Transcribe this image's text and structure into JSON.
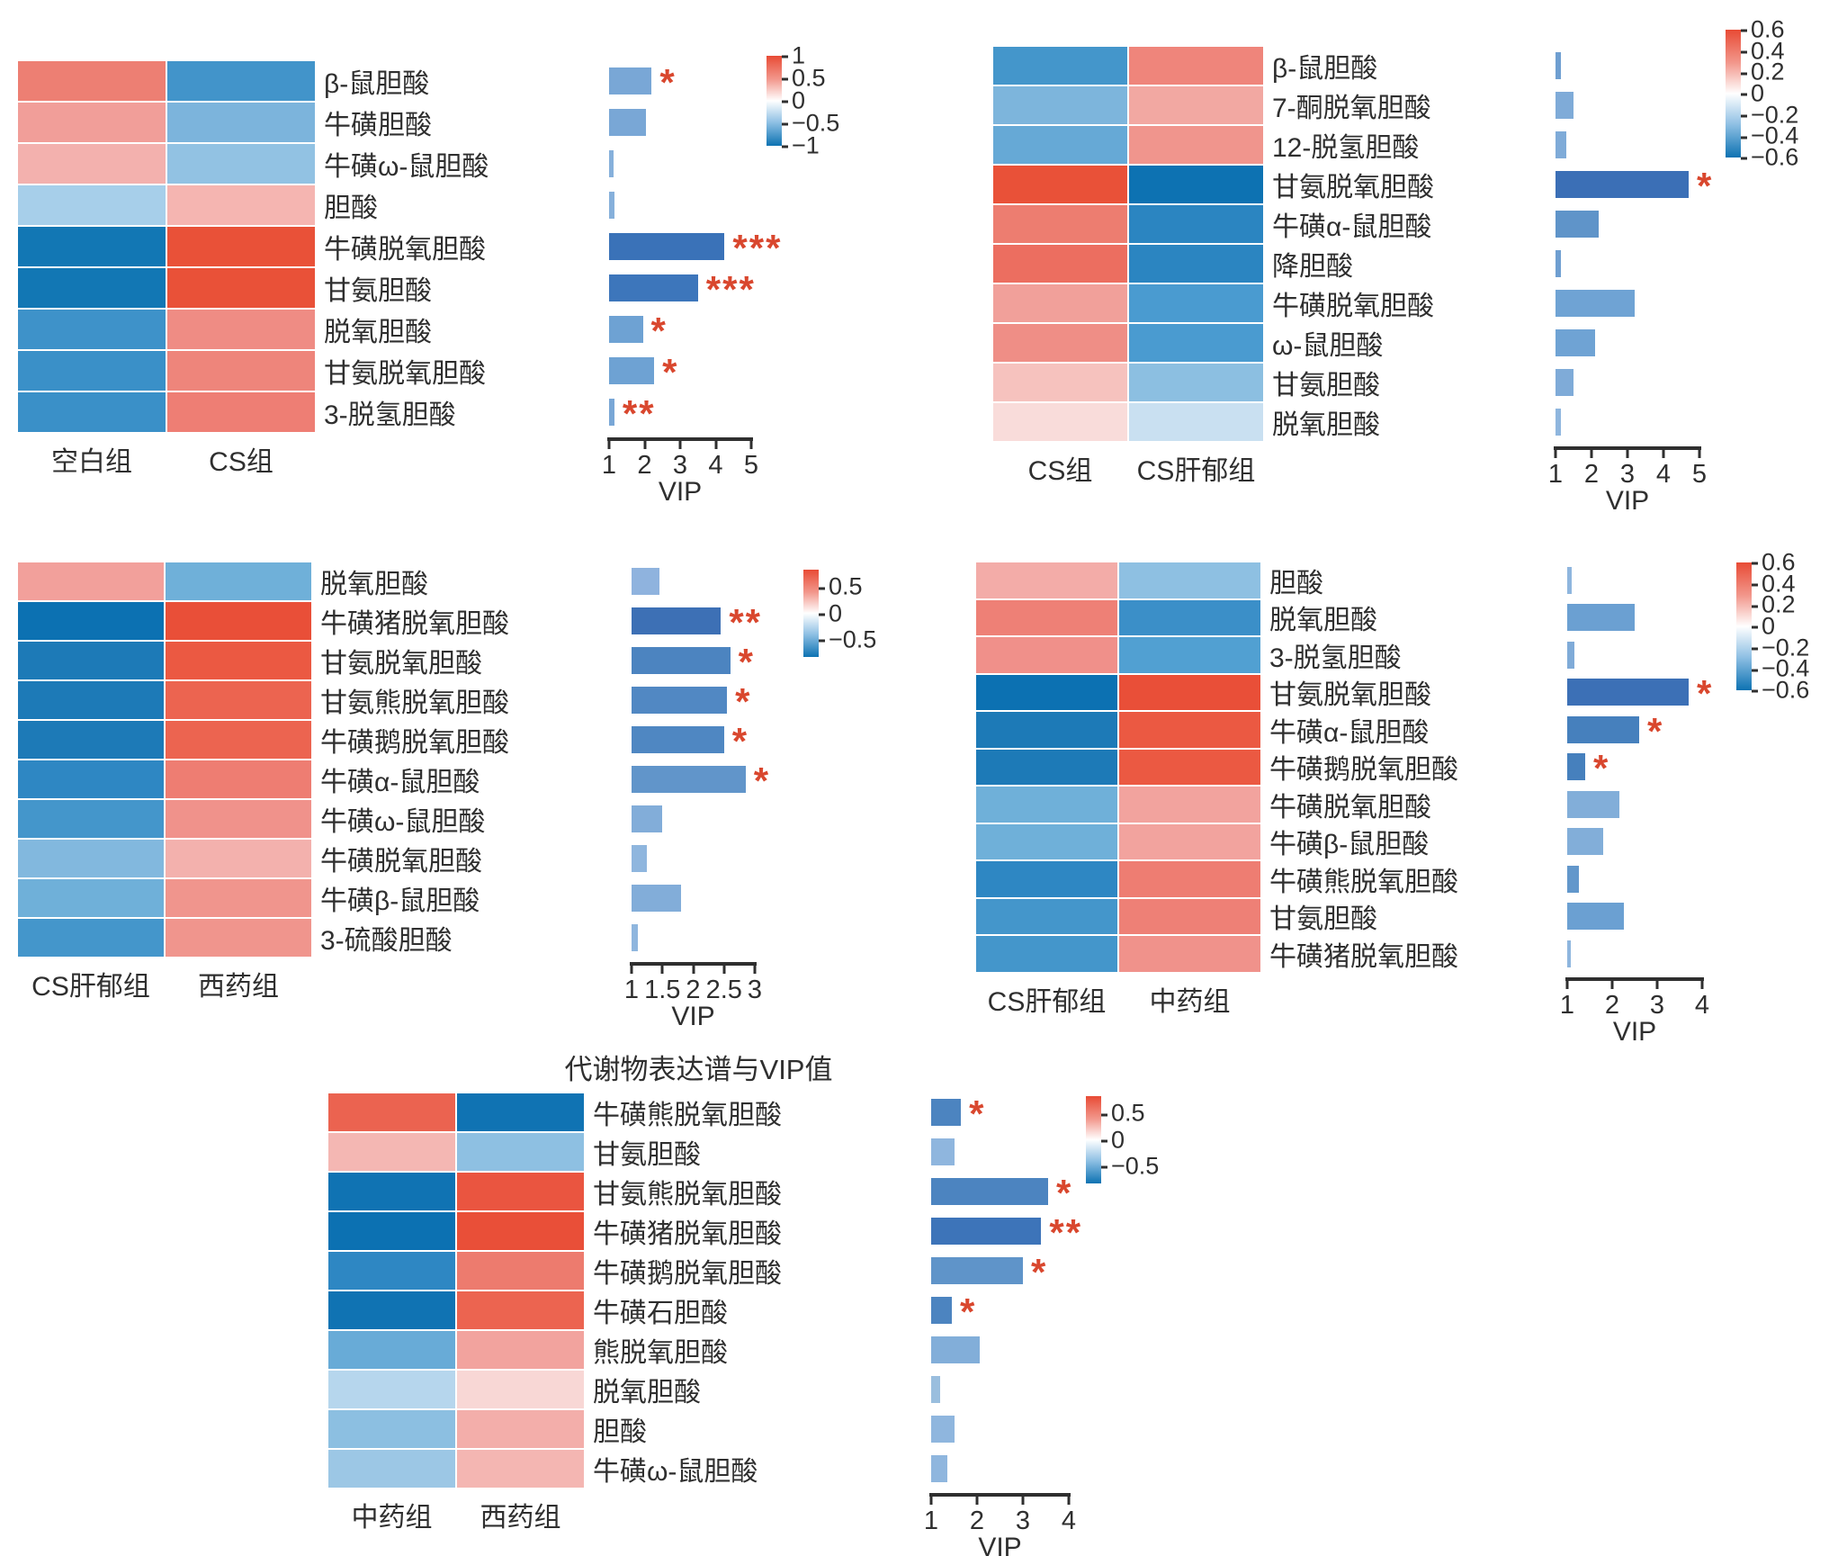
{
  "colors": {
    "star": "#d9472e",
    "axis": "#2f2f2f",
    "colormap_positive": "#e84b35",
    "colormap_negative": "#0d72b2"
  },
  "chart_data": [
    {
      "type": "heatmap_vip_bar",
      "columns": [
        "空白组",
        "CS组"
      ],
      "vip_axis": {
        "label": "VIP",
        "min": 1,
        "max": 5,
        "ticks": [
          "1",
          "2",
          "3",
          "4",
          "5"
        ]
      },
      "colorbar": {
        "ticks": [
          "1",
          "0.5",
          "0",
          "−0.5",
          "−1"
        ],
        "min": -1,
        "max": 1
      },
      "rows": [
        {
          "label": "β-鼠胆酸",
          "cells": [
            {
              "color": "#ed7f73",
              "value": 0.55
            },
            {
              "color": "#4294ca",
              "value": -0.45
            }
          ],
          "vip": 2.2,
          "sig": "*",
          "bar_color": "#79a7d6"
        },
        {
          "label": "牛磺胆酸",
          "cells": [
            {
              "color": "#f19e99",
              "value": 0.4
            },
            {
              "color": "#7cb4dc",
              "value": -0.35
            }
          ],
          "vip": 2.05,
          "sig": "",
          "bar_color": "#79a7d6"
        },
        {
          "label": "牛磺ω-鼠胆酸",
          "cells": [
            {
              "color": "#f3b1ae",
              "value": 0.3
            },
            {
              "color": "#92c2e3",
              "value": -0.28
            }
          ],
          "vip": 1.13,
          "sig": "",
          "bar_color": "#86b0db"
        },
        {
          "label": "胆酸",
          "cells": [
            {
              "color": "#a7cfea",
              "value": -0.25
            },
            {
              "color": "#f5b5b1",
              "value": 0.28
            }
          ],
          "vip": 1.15,
          "sig": "",
          "bar_color": "#86b0db"
        },
        {
          "label": "牛磺脱氧胆酸",
          "cells": [
            {
              "color": "#1277b4",
              "value": -0.95
            },
            {
              "color": "#e95138",
              "value": 0.85
            }
          ],
          "vip": 4.25,
          "sig": "***",
          "bar_color": "#3a72b8"
        },
        {
          "label": "甘氨胆酸",
          "cells": [
            {
              "color": "#1277b4",
              "value": -0.95
            },
            {
              "color": "#e95138",
              "value": 0.85
            }
          ],
          "vip": 3.5,
          "sig": "***",
          "bar_color": "#3d76bb"
        },
        {
          "label": "脱氧胆酸",
          "cells": [
            {
              "color": "#3e92c9",
              "value": -0.55
            },
            {
              "color": "#ef8c84",
              "value": 0.5
            }
          ],
          "vip": 1.95,
          "sig": "*",
          "bar_color": "#6ea2d3"
        },
        {
          "label": "甘氨脱氧胆酸",
          "cells": [
            {
              "color": "#3a90c8",
              "value": -0.55
            },
            {
              "color": "#ee857b",
              "value": 0.52
            }
          ],
          "vip": 2.27,
          "sig": "*",
          "bar_color": "#6ea2d3"
        },
        {
          "label": "3-脱氢胆酸",
          "cells": [
            {
              "color": "#3a90c8",
              "value": -0.55
            },
            {
              "color": "#ee7e74",
              "value": 0.55
            }
          ],
          "vip": 1.15,
          "sig": "**",
          "bar_color": "#79a7d6"
        }
      ]
    },
    {
      "type": "heatmap_vip_bar",
      "columns": [
        "CS组",
        "CS肝郁组"
      ],
      "vip_axis": {
        "label": "VIP",
        "min": 1,
        "max": 5,
        "ticks": [
          "1",
          "2",
          "3",
          "4",
          "5"
        ]
      },
      "colorbar": {
        "ticks": [
          "0.6",
          "0.4",
          "0.2",
          "0",
          "−0.2",
          "−0.4",
          "−0.6"
        ],
        "min": -0.6,
        "max": 0.6
      },
      "rows": [
        {
          "label": "β-鼠胆酸",
          "cells": [
            {
              "color": "#4496cb",
              "value": -0.33
            },
            {
              "color": "#ef857b",
              "value": 0.33
            }
          ],
          "vip": 1.15,
          "sig": "",
          "bar_color": "#6f9fd1"
        },
        {
          "label": "7-酮脱氧胆酸",
          "cells": [
            {
              "color": "#7db5dc",
              "value": -0.2
            },
            {
              "color": "#f2a8a2",
              "value": 0.2
            }
          ],
          "vip": 1.5,
          "sig": "",
          "bar_color": "#7fabd8"
        },
        {
          "label": "12-脱氢胆酸",
          "cells": [
            {
              "color": "#66a9d6",
              "value": -0.27
            },
            {
              "color": "#f0958d",
              "value": 0.28
            }
          ],
          "vip": 1.3,
          "sig": "",
          "bar_color": "#7fabd8"
        },
        {
          "label": "甘氨脱氧胆酸",
          "cells": [
            {
              "color": "#e95138",
              "value": 0.55
            },
            {
              "color": "#0d72b2",
              "value": -0.55
            }
          ],
          "vip": 4.7,
          "sig": "*",
          "bar_color": "#3b6fb6"
        },
        {
          "label": "牛磺α-鼠胆酸",
          "cells": [
            {
              "color": "#ed7d70",
              "value": 0.37
            },
            {
              "color": "#2b85c1",
              "value": -0.42
            }
          ],
          "vip": 2.2,
          "sig": "",
          "bar_color": "#5f94c9"
        },
        {
          "label": "降胆酸",
          "cells": [
            {
              "color": "#ec6e60",
              "value": 0.42
            },
            {
              "color": "#2b85c1",
              "value": -0.42
            }
          ],
          "vip": 1.15,
          "sig": "",
          "bar_color": "#6f9fd1"
        },
        {
          "label": "牛磺脱氧胆酸",
          "cells": [
            {
              "color": "#f1a09a",
              "value": 0.2
            },
            {
              "color": "#4a9bd0",
              "value": -0.32
            }
          ],
          "vip": 3.2,
          "sig": "",
          "bar_color": "#6fa3d4"
        },
        {
          "label": "ω-鼠胆酸",
          "cells": [
            {
              "color": "#ef8e86",
              "value": 0.3
            },
            {
              "color": "#4a9bd0",
              "value": -0.32
            }
          ],
          "vip": 2.1,
          "sig": "",
          "bar_color": "#6fa3d4"
        },
        {
          "label": "甘氨胆酸",
          "cells": [
            {
              "color": "#f6c2be",
              "value": 0.12
            },
            {
              "color": "#8cbfe1",
              "value": -0.18
            }
          ],
          "vip": 1.5,
          "sig": "",
          "bar_color": "#7fabd8"
        },
        {
          "label": "脱氧胆酸",
          "cells": [
            {
              "color": "#f9dcda",
              "value": 0.05
            },
            {
              "color": "#c9e0f1",
              "value": -0.08
            }
          ],
          "vip": 1.15,
          "sig": "",
          "bar_color": "#8fb6de"
        }
      ]
    },
    {
      "type": "heatmap_vip_bar",
      "columns": [
        "CS肝郁组",
        "西药组"
      ],
      "vip_axis": {
        "label": "VIP",
        "min": 1,
        "max": 3,
        "ticks": [
          "1",
          "1.5",
          "2",
          "2.5",
          "3"
        ]
      },
      "colorbar": {
        "ticks": [
          "0.5",
          "0",
          "−0.5"
        ],
        "min": -0.5,
        "max": 0.5
      },
      "rows": [
        {
          "label": "脱氧胆酸",
          "cells": [
            {
              "color": "#f2a09b",
              "value": 0.25
            },
            {
              "color": "#6fb0d9",
              "value": -0.3
            }
          ],
          "vip": 1.45,
          "sig": "",
          "bar_color": "#8fb3de"
        },
        {
          "label": "牛磺猪脱氧胆酸",
          "cells": [
            {
              "color": "#0c71b2",
              "value": -0.55
            },
            {
              "color": "#e94f38",
              "value": 0.55
            }
          ],
          "vip": 2.45,
          "sig": "**",
          "bar_color": "#3d70b5"
        },
        {
          "label": "甘氨脱氧胆酸",
          "cells": [
            {
              "color": "#1d7ab7",
              "value": -0.5
            },
            {
              "color": "#eb5942",
              "value": 0.5
            }
          ],
          "vip": 2.6,
          "sig": "*",
          "bar_color": "#4c84c0"
        },
        {
          "label": "甘氨熊脱氧胆酸",
          "cells": [
            {
              "color": "#1d7ab7",
              "value": -0.5
            },
            {
              "color": "#ec6450",
              "value": 0.45
            }
          ],
          "vip": 2.55,
          "sig": "*",
          "bar_color": "#5188c3"
        },
        {
          "label": "牛磺鹅脱氧胆酸",
          "cells": [
            {
              "color": "#1d7ab7",
              "value": -0.5
            },
            {
              "color": "#ec6450",
              "value": 0.45
            }
          ],
          "vip": 2.5,
          "sig": "*",
          "bar_color": "#4f87c2"
        },
        {
          "label": "牛磺α-鼠胆酸",
          "cells": [
            {
              "color": "#2e87c3",
              "value": -0.45
            },
            {
              "color": "#ee7d72",
              "value": 0.35
            }
          ],
          "vip": 2.85,
          "sig": "*",
          "bar_color": "#6195ca"
        },
        {
          "label": "牛磺ω-鼠胆酸",
          "cells": [
            {
              "color": "#4496cb",
              "value": -0.33
            },
            {
              "color": "#f0928b",
              "value": 0.3
            }
          ],
          "vip": 1.5,
          "sig": "",
          "bar_color": "#82add9"
        },
        {
          "label": "牛磺脱氧胆酸",
          "cells": [
            {
              "color": "#82b8de",
              "value": -0.2
            },
            {
              "color": "#f3b1ad",
              "value": 0.18
            }
          ],
          "vip": 1.25,
          "sig": "",
          "bar_color": "#8fb6de"
        },
        {
          "label": "牛磺β-鼠胆酸",
          "cells": [
            {
              "color": "#6fb0d9",
              "value": -0.3
            },
            {
              "color": "#f0958d",
              "value": 0.28
            }
          ],
          "vip": 1.8,
          "sig": "",
          "bar_color": "#82add9"
        },
        {
          "label": "3-硫酸胆酸",
          "cells": [
            {
              "color": "#4496cb",
              "value": -0.33
            },
            {
              "color": "#f0958d",
              "value": 0.28
            }
          ],
          "vip": 1.1,
          "sig": "",
          "bar_color": "#8fb6de"
        }
      ]
    },
    {
      "type": "heatmap_vip_bar",
      "columns": [
        "CS肝郁组",
        "中药组"
      ],
      "vip_axis": {
        "label": "VIP",
        "min": 1,
        "max": 4,
        "ticks": [
          "1",
          "2",
          "3",
          "4"
        ]
      },
      "colorbar": {
        "ticks": [
          "0.6",
          "0.4",
          "0.2",
          "0",
          "−0.2",
          "−0.4",
          "−0.6"
        ],
        "min": -0.6,
        "max": 0.6
      },
      "rows": [
        {
          "label": "胆酸",
          "cells": [
            {
              "color": "#f3aca8",
              "value": 0.22
            },
            {
              "color": "#8ec0e2",
              "value": -0.18
            }
          ],
          "vip": 1.1,
          "sig": "",
          "bar_color": "#8fb6de"
        },
        {
          "label": "脱氧胆酸",
          "cells": [
            {
              "color": "#ee8076",
              "value": 0.38
            },
            {
              "color": "#3b8fc8",
              "value": -0.35
            }
          ],
          "vip": 2.5,
          "sig": "",
          "bar_color": "#6ba0d2"
        },
        {
          "label": "3-脱氢胆酸",
          "cells": [
            {
              "color": "#f0908a",
              "value": 0.32
            },
            {
              "color": "#51a0d2",
              "value": -0.28
            }
          ],
          "vip": 1.15,
          "sig": "",
          "bar_color": "#7fabd8"
        },
        {
          "label": "甘氨脱氧胆酸",
          "cells": [
            {
              "color": "#0c71b2",
              "value": -0.6
            },
            {
              "color": "#e94f38",
              "value": 0.58
            }
          ],
          "vip": 3.7,
          "sig": "*",
          "bar_color": "#3c70b6"
        },
        {
          "label": "牛磺α-鼠胆酸",
          "cells": [
            {
              "color": "#1d7ab7",
              "value": -0.55
            },
            {
              "color": "#eb5942",
              "value": 0.52
            }
          ],
          "vip": 2.6,
          "sig": "*",
          "bar_color": "#4680bd"
        },
        {
          "label": "牛磺鹅脱氧胆酸",
          "cells": [
            {
              "color": "#1d7ab7",
              "value": -0.55
            },
            {
              "color": "#eb5942",
              "value": 0.52
            }
          ],
          "vip": 1.4,
          "sig": "*",
          "bar_color": "#4680bd"
        },
        {
          "label": "牛磺脱氧胆酸",
          "cells": [
            {
              "color": "#6fb0d9",
              "value": -0.25
            },
            {
              "color": "#f2a39e",
              "value": 0.22
            }
          ],
          "vip": 2.15,
          "sig": "",
          "bar_color": "#82aed9"
        },
        {
          "label": "牛磺β-鼠胆酸",
          "cells": [
            {
              "color": "#6fb0d9",
              "value": -0.25
            },
            {
              "color": "#f2a39e",
              "value": 0.22
            }
          ],
          "vip": 1.8,
          "sig": "",
          "bar_color": "#82aed9"
        },
        {
          "label": "牛磺熊脱氧胆酸",
          "cells": [
            {
              "color": "#2e87c3",
              "value": -0.42
            },
            {
              "color": "#ee7d72",
              "value": 0.38
            }
          ],
          "vip": 1.25,
          "sig": "",
          "bar_color": "#6297cb"
        },
        {
          "label": "甘氨胆酸",
          "cells": [
            {
              "color": "#4496cb",
              "value": -0.33
            },
            {
              "color": "#ee8076",
              "value": 0.38
            }
          ],
          "vip": 2.25,
          "sig": "",
          "bar_color": "#6ba0d2"
        },
        {
          "label": "牛磺猪脱氧胆酸",
          "cells": [
            {
              "color": "#4496cb",
              "value": -0.33
            },
            {
              "color": "#f0928b",
              "value": 0.3
            }
          ],
          "vip": 1.05,
          "sig": "",
          "bar_color": "#8fb6de"
        }
      ]
    },
    {
      "type": "heatmap_vip_bar",
      "title": "代谢物表达谱与VIP值",
      "columns": [
        "中药组",
        "西药组"
      ],
      "vip_axis": {
        "label": "VIP",
        "min": 1,
        "max": 4,
        "ticks": [
          "1",
          "2",
          "3",
          "4"
        ]
      },
      "colorbar": {
        "ticks": [
          "0.5",
          "0",
          "−0.5"
        ],
        "min": -0.5,
        "max": 0.5
      },
      "rows": [
        {
          "label": "牛磺熊脱氧胆酸",
          "cells": [
            {
              "color": "#eb6350",
              "value": 0.48
            },
            {
              "color": "#1073b3",
              "value": -0.55
            }
          ],
          "vip": 1.65,
          "sig": "*",
          "bar_color": "#4c84c0"
        },
        {
          "label": "甘氨胆酸",
          "cells": [
            {
              "color": "#f4b7b3",
              "value": 0.18
            },
            {
              "color": "#8ec0e2",
              "value": -0.2
            }
          ],
          "vip": 1.5,
          "sig": "",
          "bar_color": "#8fb6de"
        },
        {
          "label": "甘氨熊脱氧胆酸",
          "cells": [
            {
              "color": "#1073b3",
              "value": -0.55
            },
            {
              "color": "#ea5540",
              "value": 0.52
            }
          ],
          "vip": 3.55,
          "sig": "*",
          "bar_color": "#4c84c0"
        },
        {
          "label": "牛磺猪脱氧胆酸",
          "cells": [
            {
              "color": "#0c71b2",
              "value": -0.55
            },
            {
              "color": "#e94f38",
              "value": 0.55
            }
          ],
          "vip": 3.4,
          "sig": "**",
          "bar_color": "#3d74b9"
        },
        {
          "label": "牛磺鹅脱氧胆酸",
          "cells": [
            {
              "color": "#2e87c3",
              "value": -0.42
            },
            {
              "color": "#ed7b6e",
              "value": 0.4
            }
          ],
          "vip": 3.0,
          "sig": "*",
          "bar_color": "#5f94c9"
        },
        {
          "label": "牛磺石胆酸",
          "cells": [
            {
              "color": "#1073b3",
              "value": -0.55
            },
            {
              "color": "#ec6450",
              "value": 0.45
            }
          ],
          "vip": 1.45,
          "sig": "*",
          "bar_color": "#4c84c0"
        },
        {
          "label": "熊脱氧胆酸",
          "cells": [
            {
              "color": "#68abd7",
              "value": -0.28
            },
            {
              "color": "#f2a39e",
              "value": 0.22
            }
          ],
          "vip": 2.05,
          "sig": "",
          "bar_color": "#82aed9"
        },
        {
          "label": "脱氧胆酸",
          "cells": [
            {
              "color": "#b6d6ed",
              "value": -0.12
            },
            {
              "color": "#f8d7d5",
              "value": 0.1
            }
          ],
          "vip": 1.2,
          "sig": "",
          "bar_color": "#9abede"
        },
        {
          "label": "胆酸",
          "cells": [
            {
              "color": "#8cbfe1",
              "value": -0.2
            },
            {
              "color": "#f3aeaa",
              "value": 0.2
            }
          ],
          "vip": 1.5,
          "sig": "",
          "bar_color": "#8fb6de"
        },
        {
          "label": "牛磺ω-鼠胆酸",
          "cells": [
            {
              "color": "#9cc7e5",
              "value": -0.17
            },
            {
              "color": "#f4b6b2",
              "value": 0.18
            }
          ],
          "vip": 1.35,
          "sig": "",
          "bar_color": "#8fb6de"
        }
      ]
    }
  ]
}
